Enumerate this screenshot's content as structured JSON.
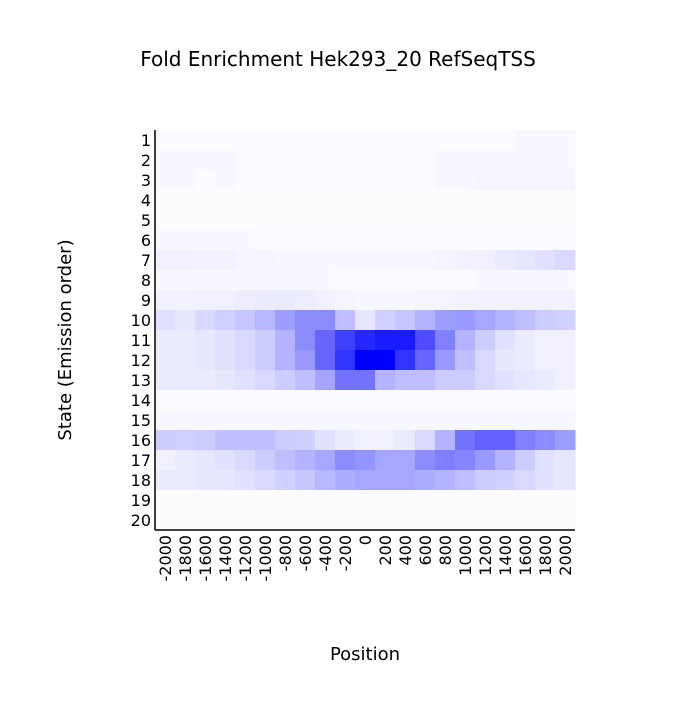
{
  "chart_data": {
    "type": "heatmap",
    "title": "Fold Enrichment Hek293_20 RefSeqTSS",
    "x_label": "Position",
    "y_label": "State (Emission order)",
    "color": "#0000ff",
    "x_categories": [
      -2000,
      -1800,
      -1600,
      -1400,
      -1200,
      -1000,
      -800,
      -600,
      -400,
      -200,
      0,
      200,
      400,
      600,
      800,
      1000,
      1200,
      1400,
      1600,
      1800,
      2000
    ],
    "y_categories": [
      1,
      2,
      3,
      4,
      5,
      6,
      7,
      8,
      9,
      10,
      11,
      12,
      13,
      14,
      15,
      16,
      17,
      18,
      19,
      20
    ],
    "values": [
      [
        0.02,
        0.02,
        0.02,
        0.02,
        0.02,
        0.02,
        0.02,
        0.02,
        0.02,
        0.02,
        0.02,
        0.02,
        0.02,
        0.02,
        0.02,
        0.02,
        0.02,
        0.02,
        0.03,
        0.03,
        0.03
      ],
      [
        0.03,
        0.03,
        0.03,
        0.03,
        0.02,
        0.02,
        0.02,
        0.02,
        0.02,
        0.02,
        0.02,
        0.02,
        0.02,
        0.02,
        0.03,
        0.03,
        0.03,
        0.03,
        0.03,
        0.03,
        0.03
      ],
      [
        0.03,
        0.03,
        0.02,
        0.03,
        0.02,
        0.02,
        0.02,
        0.02,
        0.02,
        0.02,
        0.02,
        0.02,
        0.02,
        0.02,
        0.03,
        0.03,
        0.04,
        0.04,
        0.04,
        0.04,
        0.04
      ],
      [
        0.01,
        0.01,
        0.01,
        0.01,
        0.01,
        0.01,
        0.01,
        0.01,
        0.01,
        0.01,
        0.01,
        0.01,
        0.01,
        0.01,
        0.01,
        0.01,
        0.01,
        0.01,
        0.01,
        0.01,
        0.01
      ],
      [
        0.01,
        0.01,
        0.01,
        0.01,
        0.01,
        0.01,
        0.01,
        0.01,
        0.01,
        0.01,
        0.01,
        0.01,
        0.01,
        0.01,
        0.01,
        0.01,
        0.01,
        0.01,
        0.01,
        0.01,
        0.01
      ],
      [
        0.03,
        0.03,
        0.03,
        0.03,
        0.03,
        0.02,
        0.02,
        0.02,
        0.02,
        0.02,
        0.02,
        0.02,
        0.02,
        0.02,
        0.02,
        0.02,
        0.02,
        0.02,
        0.02,
        0.02,
        0.02
      ],
      [
        0.06,
        0.06,
        0.05,
        0.05,
        0.04,
        0.04,
        0.03,
        0.03,
        0.03,
        0.03,
        0.03,
        0.03,
        0.03,
        0.03,
        0.04,
        0.05,
        0.06,
        0.08,
        0.1,
        0.12,
        0.15
      ],
      [
        0.03,
        0.03,
        0.03,
        0.03,
        0.03,
        0.03,
        0.03,
        0.03,
        0.03,
        0.02,
        0.02,
        0.02,
        0.02,
        0.02,
        0.02,
        0.02,
        0.03,
        0.03,
        0.03,
        0.03,
        0.03
      ],
      [
        0.05,
        0.05,
        0.06,
        0.06,
        0.07,
        0.08,
        0.08,
        0.07,
        0.06,
        0.04,
        0.03,
        0.03,
        0.03,
        0.04,
        0.04,
        0.05,
        0.05,
        0.05,
        0.05,
        0.05,
        0.05
      ],
      [
        0.12,
        0.1,
        0.15,
        0.18,
        0.22,
        0.28,
        0.38,
        0.45,
        0.45,
        0.25,
        0.1,
        0.18,
        0.22,
        0.3,
        0.38,
        0.4,
        0.35,
        0.3,
        0.25,
        0.2,
        0.18
      ],
      [
        0.08,
        0.08,
        0.1,
        0.12,
        0.15,
        0.2,
        0.3,
        0.45,
        0.6,
        0.75,
        0.85,
        0.9,
        0.9,
        0.7,
        0.5,
        0.3,
        0.2,
        0.12,
        0.08,
        0.06,
        0.06
      ],
      [
        0.08,
        0.08,
        0.1,
        0.12,
        0.15,
        0.2,
        0.3,
        0.4,
        0.6,
        0.8,
        1.0,
        1.0,
        0.8,
        0.6,
        0.4,
        0.25,
        0.15,
        0.1,
        0.08,
        0.06,
        0.06
      ],
      [
        0.08,
        0.08,
        0.08,
        0.1,
        0.12,
        0.15,
        0.2,
        0.25,
        0.35,
        0.55,
        0.55,
        0.3,
        0.25,
        0.25,
        0.2,
        0.2,
        0.15,
        0.12,
        0.1,
        0.08,
        0.06
      ],
      [
        0.02,
        0.02,
        0.02,
        0.02,
        0.02,
        0.02,
        0.02,
        0.02,
        0.02,
        0.02,
        0.02,
        0.02,
        0.02,
        0.02,
        0.02,
        0.02,
        0.02,
        0.02,
        0.02,
        0.02,
        0.02
      ],
      [
        0.03,
        0.03,
        0.03,
        0.03,
        0.03,
        0.03,
        0.03,
        0.03,
        0.03,
        0.03,
        0.03,
        0.03,
        0.03,
        0.03,
        0.03,
        0.03,
        0.03,
        0.03,
        0.03,
        0.03,
        0.03
      ],
      [
        0.2,
        0.18,
        0.2,
        0.25,
        0.25,
        0.25,
        0.2,
        0.18,
        0.12,
        0.08,
        0.06,
        0.06,
        0.08,
        0.15,
        0.3,
        0.55,
        0.62,
        0.62,
        0.5,
        0.45,
        0.38
      ],
      [
        0.06,
        0.08,
        0.1,
        0.12,
        0.15,
        0.2,
        0.25,
        0.3,
        0.35,
        0.45,
        0.42,
        0.35,
        0.35,
        0.45,
        0.5,
        0.48,
        0.4,
        0.3,
        0.2,
        0.12,
        0.1
      ],
      [
        0.08,
        0.08,
        0.1,
        0.1,
        0.12,
        0.15,
        0.18,
        0.22,
        0.28,
        0.32,
        0.35,
        0.35,
        0.35,
        0.32,
        0.3,
        0.25,
        0.2,
        0.18,
        0.15,
        0.12,
        0.1
      ],
      [
        0.01,
        0.01,
        0.01,
        0.01,
        0.01,
        0.01,
        0.01,
        0.01,
        0.01,
        0.01,
        0.01,
        0.01,
        0.01,
        0.01,
        0.01,
        0.01,
        0.01,
        0.01,
        0.01,
        0.01,
        0.01
      ],
      [
        0.01,
        0.01,
        0.01,
        0.01,
        0.01,
        0.01,
        0.01,
        0.01,
        0.01,
        0.01,
        0.01,
        0.01,
        0.01,
        0.01,
        0.01,
        0.01,
        0.01,
        0.01,
        0.01,
        0.01,
        0.01
      ]
    ]
  }
}
